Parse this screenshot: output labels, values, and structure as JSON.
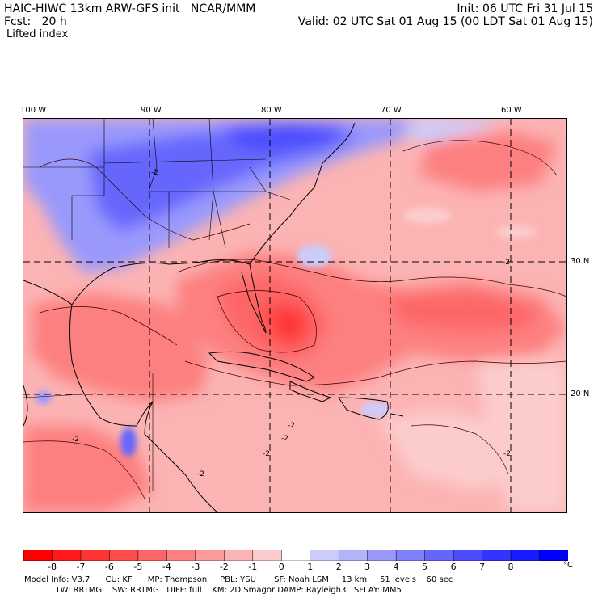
{
  "header": {
    "model_title": "HAIC-HIWC 13km ARW-GFS init   NCAR/MMM",
    "forecast": "Fcst:   20 h",
    "field": "Lifted index",
    "init": "Init: 06 UTC Fri 31 Jul 15",
    "valid": "Valid: 02 UTC Sat 01 Aug 15 (00 LDT Sat 01 Aug 15)"
  },
  "map": {
    "longitude_labels": [
      "100 W",
      "90 W",
      "80 W",
      "70 W",
      "60 W"
    ],
    "latitude_labels": [
      "30 N",
      "20 N"
    ],
    "contour_labels": [
      "-2",
      "-2",
      "-2",
      "-2",
      "-2",
      "-2",
      "-2",
      "-2"
    ]
  },
  "colorbar": {
    "labels": [
      "-8",
      "-7",
      "-6",
      "-5",
      "-4",
      "-3",
      "-2",
      "-1",
      "0",
      "1",
      "2",
      "3",
      "4",
      "5",
      "6",
      "7",
      "8"
    ],
    "unit": "°C",
    "colors": [
      "#ff0000",
      "#ff1a1a",
      "#fe3333",
      "#fe4c4c",
      "#fd6666",
      "#fd8080",
      "#fc9999",
      "#fcb3b3",
      "#fccccc",
      "#ffffff",
      "#ccccfc",
      "#b3b3fc",
      "#9999fc",
      "#8080fd",
      "#6666fd",
      "#4c4cfe",
      "#3333fe",
      "#1a1aff",
      "#0000ff"
    ]
  },
  "footer": {
    "line1": "Model Info: V3.7      CU: KF      MP: Thompson     PBL: YSU       SF: Noah LSM     13 km     51 levels    60 sec",
    "line2": "LW: RRTMG    SW: RRTMG   DIFF: full    KM: 2D Smagor DAMP: Rayleigh3   SFLAY: MM5"
  }
}
